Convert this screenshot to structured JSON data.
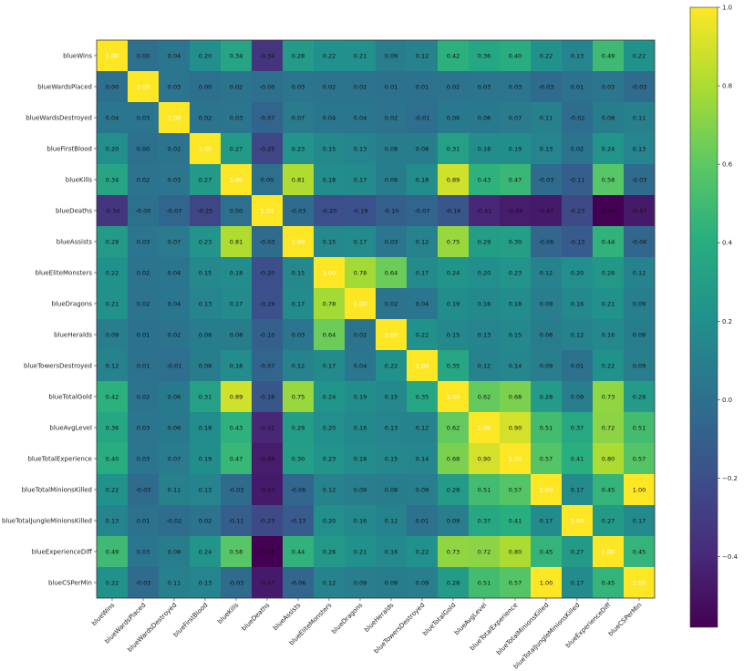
{
  "chart_data": {
    "type": "heatmap",
    "title": "",
    "xlabel": "",
    "ylabel": "",
    "labels": [
      "blueWins",
      "blueWardsPlaced",
      "blueWardsDestroyed",
      "blueFirstBlood",
      "blueKills",
      "blueDeaths",
      "blueAssists",
      "blueEliteMonsters",
      "blueDragons",
      "blueHeralds",
      "blueTowersDestroyed",
      "blueTotalGold",
      "blueAvgLevel",
      "blueTotalExperience",
      "blueTotalMinionsKilled",
      "blueTotalJungleMinionsKilled",
      "blueExperienceDiff",
      "blueCSPerMin"
    ],
    "matrix": [
      [
        "1.00",
        "0.00",
        "0.04",
        "0.20",
        "0.34",
        "-0.34",
        "0.28",
        "0.22",
        "0.21",
        "0.09",
        "0.12",
        "0.42",
        "0.36",
        "0.40",
        "0.22",
        "0.13",
        "0.49",
        "0.22"
      ],
      [
        "0.00",
        "1.00",
        "0.03",
        "0.00",
        "0.02",
        "-0.00",
        "0.03",
        "0.02",
        "0.02",
        "0.01",
        "0.01",
        "0.02",
        "0.03",
        "0.03",
        "-0.03",
        "0.01",
        "0.03",
        "-0.03"
      ],
      [
        "0.04",
        "0.03",
        "1.00",
        "0.02",
        "0.03",
        "-0.07",
        "0.07",
        "0.04",
        "0.04",
        "0.02",
        "-0.01",
        "0.06",
        "0.06",
        "0.07",
        "0.11",
        "-0.02",
        "0.08",
        "0.11"
      ],
      [
        "0.20",
        "0.00",
        "0.02",
        "1.00",
        "0.27",
        "-0.25",
        "0.23",
        "0.15",
        "0.13",
        "0.08",
        "0.08",
        "0.31",
        "0.18",
        "0.19",
        "0.13",
        "0.02",
        "0.24",
        "0.13"
      ],
      [
        "0.34",
        "0.02",
        "0.03",
        "0.27",
        "1.00",
        "0.00",
        "0.81",
        "0.18",
        "0.17",
        "0.08",
        "0.18",
        "0.89",
        "0.43",
        "0.47",
        "-0.03",
        "-0.11",
        "0.58",
        "-0.03"
      ],
      [
        "-0.34",
        "-0.00",
        "-0.07",
        "-0.25",
        "0.00",
        "1.00",
        "-0.03",
        "-0.20",
        "-0.19",
        "-0.10",
        "-0.07",
        "-0.16",
        "-0.41",
        "-0.46",
        "-0.47",
        "-0.23",
        "-0.58",
        "-0.47"
      ],
      [
        "0.28",
        "0.03",
        "0.07",
        "0.23",
        "0.81",
        "-0.03",
        "1.00",
        "0.15",
        "0.17",
        "0.03",
        "0.12",
        "0.75",
        "0.29",
        "0.30",
        "-0.06",
        "-0.13",
        "0.44",
        "-0.06"
      ],
      [
        "0.22",
        "0.02",
        "0.04",
        "0.15",
        "0.18",
        "-0.20",
        "0.15",
        "1.00",
        "0.78",
        "0.64",
        "0.17",
        "0.24",
        "0.20",
        "0.23",
        "0.12",
        "0.20",
        "0.26",
        "0.12"
      ],
      [
        "0.21",
        "0.02",
        "0.04",
        "0.13",
        "0.17",
        "-0.19",
        "0.17",
        "0.78",
        "1.00",
        "0.02",
        "0.04",
        "0.19",
        "0.16",
        "0.18",
        "0.09",
        "0.16",
        "0.21",
        "0.09"
      ],
      [
        "0.09",
        "0.01",
        "0.02",
        "0.08",
        "0.08",
        "-0.10",
        "0.03",
        "0.64",
        "0.02",
        "1.00",
        "0.22",
        "0.15",
        "0.13",
        "0.15",
        "0.08",
        "0.12",
        "0.16",
        "0.08"
      ],
      [
        "0.12",
        "0.01",
        "-0.01",
        "0.08",
        "0.18",
        "-0.07",
        "0.12",
        "0.17",
        "0.04",
        "0.22",
        "1.00",
        "0.35",
        "0.12",
        "0.14",
        "0.09",
        "0.01",
        "0.22",
        "0.09"
      ],
      [
        "0.42",
        "0.02",
        "0.06",
        "0.31",
        "0.89",
        "-0.16",
        "0.75",
        "0.24",
        "0.19",
        "0.15",
        "0.35",
        "1.00",
        "0.62",
        "0.68",
        "0.28",
        "0.09",
        "0.73",
        "0.28"
      ],
      [
        "0.36",
        "0.03",
        "0.06",
        "0.18",
        "0.43",
        "-0.41",
        "0.29",
        "0.20",
        "0.16",
        "0.13",
        "0.12",
        "0.62",
        "1.00",
        "0.90",
        "0.51",
        "0.37",
        "0.72",
        "0.51"
      ],
      [
        "0.40",
        "0.03",
        "0.07",
        "0.19",
        "0.47",
        "-0.46",
        "0.30",
        "0.23",
        "0.18",
        "0.15",
        "0.14",
        "0.68",
        "0.90",
        "1.00",
        "0.57",
        "0.41",
        "0.80",
        "0.57"
      ],
      [
        "0.22",
        "-0.03",
        "0.11",
        "0.13",
        "-0.03",
        "-0.47",
        "-0.06",
        "0.12",
        "0.09",
        "0.08",
        "0.09",
        "0.28",
        "0.51",
        "0.57",
        "1.00",
        "0.17",
        "0.45",
        "1.00"
      ],
      [
        "0.13",
        "0.01",
        "-0.02",
        "0.02",
        "-0.11",
        "-0.23",
        "-0.13",
        "0.20",
        "0.16",
        "0.12",
        "0.01",
        "0.09",
        "0.37",
        "0.41",
        "0.17",
        "1.00",
        "0.27",
        "0.17"
      ],
      [
        "0.49",
        "0.03",
        "0.08",
        "0.24",
        "0.58",
        "-0.58",
        "0.44",
        "0.26",
        "0.21",
        "0.16",
        "0.22",
        "0.73",
        "0.72",
        "0.80",
        "0.45",
        "0.27",
        "1.00",
        "0.45"
      ],
      [
        "0.22",
        "-0.03",
        "0.11",
        "0.13",
        "-0.03",
        "-0.47",
        "-0.06",
        "0.12",
        "0.09",
        "0.08",
        "0.09",
        "0.28",
        "0.51",
        "0.57",
        "1.00",
        "0.17",
        "0.45",
        "1.00"
      ]
    ],
    "colormap": "viridis",
    "vmin": -0.58,
    "vmax": 1.0,
    "colorbar_ticks": [
      "1.0",
      "0.8",
      "0.6",
      "0.4",
      "0.2",
      "0.0",
      "−0.2",
      "−0.4"
    ],
    "colorbar_tick_values": [
      1.0,
      0.8,
      0.6,
      0.4,
      0.2,
      0.0,
      -0.2,
      -0.4
    ],
    "grid": false,
    "legend": "colorbar-right"
  }
}
